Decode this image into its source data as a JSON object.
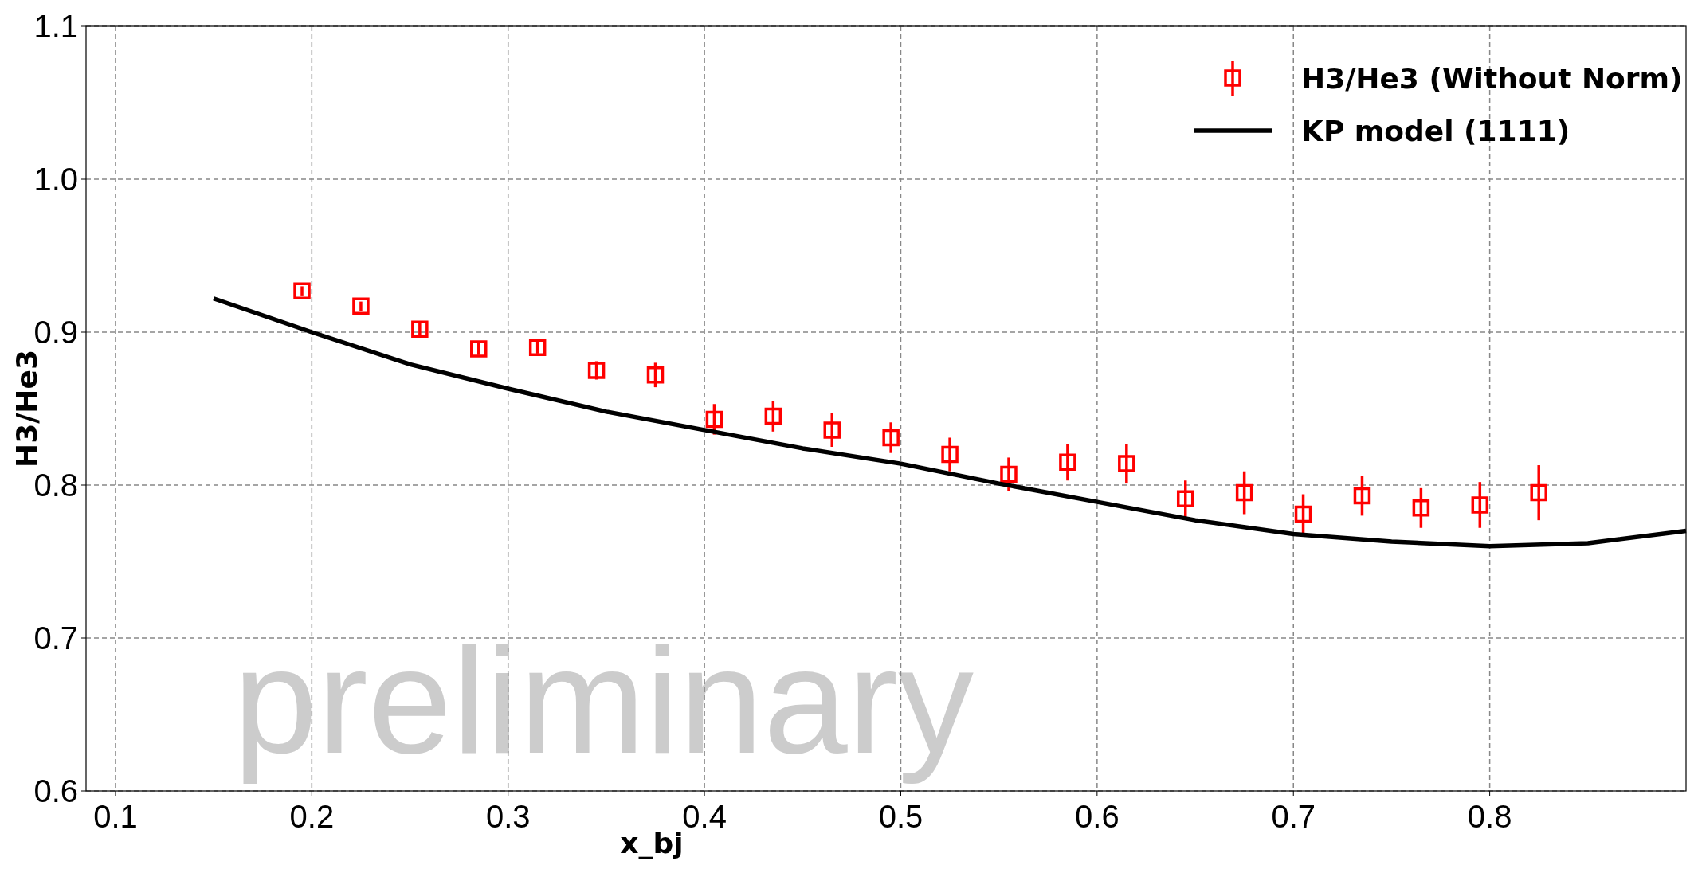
{
  "chart_data": {
    "type": "scatter",
    "xlabel": "x_bj",
    "ylabel": "H3/He3",
    "xlim": [
      0.085,
      0.9
    ],
    "xticks": [
      0.1,
      0.2,
      0.3,
      0.4,
      0.5,
      0.6,
      0.7,
      0.8
    ],
    "ylim": [
      0.6,
      1.1
    ],
    "yticks": [
      0.6,
      0.7,
      0.8,
      0.9,
      {
        "value": 1,
        "label": "1.0"
      },
      1.1
    ],
    "grid": true,
    "legend": "top right",
    "line_style": "solid",
    "annotations": [
      "preliminary"
    ],
    "series": [
      {
        "name": "H3/He3 (Without Norm)",
        "marker": "square",
        "color": "#ff0000",
        "x": [
          0.195,
          0.225,
          0.255,
          0.285,
          0.315,
          0.345,
          0.375,
          0.405,
          0.435,
          0.465,
          0.495,
          0.525,
          0.555,
          0.585,
          0.615,
          0.645,
          0.675,
          0.705,
          0.735,
          0.765,
          0.795,
          0.825
        ],
        "values": [
          0.927,
          0.917,
          0.902,
          0.889,
          0.89,
          0.875,
          0.872,
          0.843,
          0.845,
          0.836,
          0.831,
          0.82,
          0.807,
          0.815,
          0.814,
          0.791,
          0.795,
          0.781,
          0.793,
          0.785,
          0.787,
          0.795
        ],
        "errors": [
          0.003,
          0.003,
          0.004,
          0.004,
          0.004,
          0.006,
          0.008,
          0.01,
          0.01,
          0.011,
          0.01,
          0.011,
          0.011,
          0.012,
          0.013,
          0.012,
          0.014,
          0.013,
          0.013,
          0.013,
          0.015,
          0.018
        ]
      },
      {
        "name": "KP model (1111)",
        "type": "line",
        "marker": "none",
        "color": "#000000",
        "x": [
          0.15,
          0.2,
          0.25,
          0.3,
          0.35,
          0.4,
          0.45,
          0.5,
          0.55,
          0.6,
          0.65,
          0.7,
          0.75,
          0.8,
          0.85,
          0.9
        ],
        "values": [
          0.922,
          0.9,
          0.879,
          0.863,
          0.848,
          0.836,
          0.824,
          0.814,
          0.801,
          0.789,
          0.777,
          0.768,
          0.763,
          0.76,
          0.762,
          0.77
        ]
      }
    ]
  }
}
